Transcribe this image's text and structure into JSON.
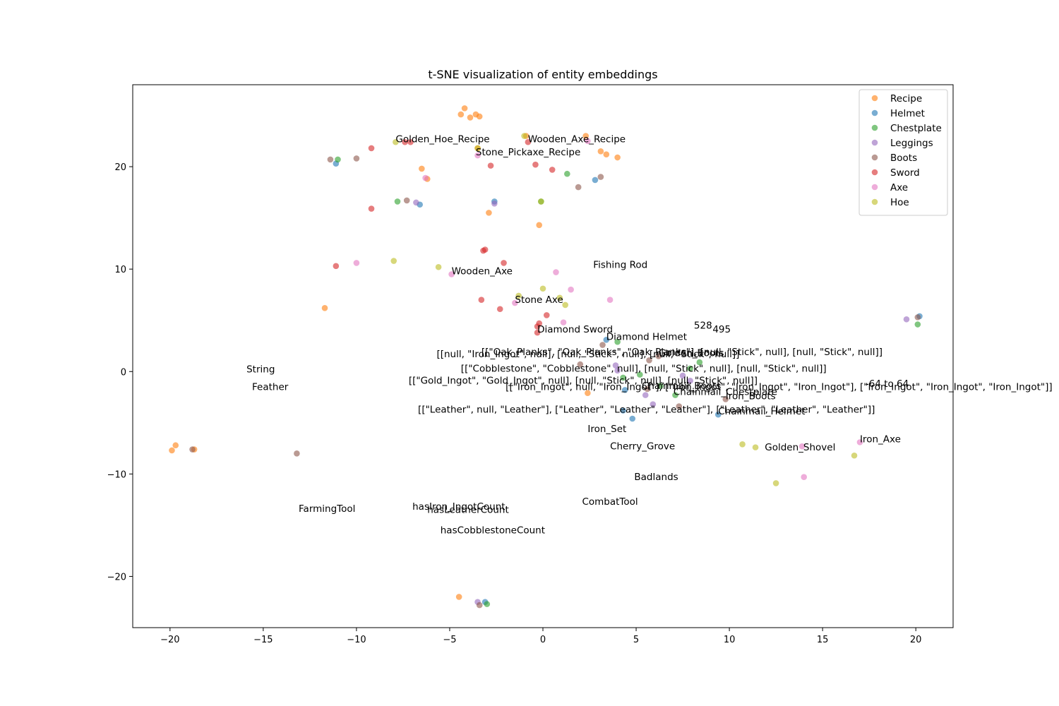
{
  "chart_data": {
    "type": "scatter",
    "title": "t-SNE visualization of entity embeddings",
    "xlabel": "",
    "ylabel": "",
    "xlim": [
      -22,
      22
    ],
    "ylim": [
      -25,
      28
    ],
    "xticks": [
      -20,
      -15,
      -10,
      -5,
      0,
      5,
      10,
      15,
      20
    ],
    "yticks": [
      -20,
      -10,
      0,
      10,
      20
    ],
    "xtick_labels": [
      "−20",
      "−15",
      "−10",
      "−5",
      "0",
      "5",
      "10",
      "15",
      "20"
    ],
    "ytick_labels": [
      "−20",
      "−10",
      "0",
      "10",
      "20"
    ],
    "legend_position": "top-right",
    "series": [
      {
        "name": "Recipe",
        "color": "#ff7f0e",
        "points": [
          [
            -4.2,
            25.7
          ],
          [
            -4.4,
            25.1
          ],
          [
            -3.9,
            24.8
          ],
          [
            -3.6,
            25.1
          ],
          [
            -3.4,
            24.9
          ],
          [
            2.3,
            23.0
          ],
          [
            -0.9,
            23.0
          ],
          [
            -3.5,
            21.8
          ],
          [
            3.1,
            21.5
          ],
          [
            3.4,
            21.2
          ],
          [
            4.0,
            20.9
          ],
          [
            -6.5,
            19.8
          ],
          [
            -6.2,
            18.8
          ],
          [
            -2.9,
            15.5
          ],
          [
            -0.2,
            14.3
          ],
          [
            -11.7,
            6.2
          ],
          [
            2.4,
            -2.1
          ],
          [
            -19.9,
            -7.7
          ],
          [
            -19.7,
            -7.2
          ],
          [
            -18.7,
            -7.6
          ],
          [
            -4.5,
            -22.0
          ]
        ]
      },
      {
        "name": "Helmet",
        "color": "#1f77b4",
        "points": [
          [
            -11.1,
            20.3
          ],
          [
            2.8,
            18.7
          ],
          [
            -6.6,
            16.3
          ],
          [
            -2.6,
            16.6
          ],
          [
            3.4,
            3.1
          ],
          [
            4.4,
            -1.8
          ],
          [
            4.3,
            -3.8
          ],
          [
            4.8,
            -4.6
          ],
          [
            9.4,
            -4.2
          ],
          [
            20.2,
            5.4
          ],
          [
            -3.1,
            -22.5
          ]
        ]
      },
      {
        "name": "Chestplate",
        "color": "#2ca02c",
        "points": [
          [
            -11.0,
            20.7
          ],
          [
            1.3,
            19.3
          ],
          [
            -7.8,
            16.6
          ],
          [
            -0.1,
            16.6
          ],
          [
            4.0,
            2.9
          ],
          [
            8.4,
            0.9
          ],
          [
            7.9,
            0.3
          ],
          [
            5.2,
            -0.3
          ],
          [
            4.3,
            -0.6
          ],
          [
            6.3,
            -1.4
          ],
          [
            7.1,
            -2.3
          ],
          [
            20.1,
            4.6
          ],
          [
            -3.0,
            -22.7
          ]
        ]
      },
      {
        "name": "Leggings",
        "color": "#9467bd",
        "points": [
          [
            -2.6,
            16.4
          ],
          [
            -6.8,
            16.5
          ],
          [
            3.9,
            0.6
          ],
          [
            4.0,
            0.1
          ],
          [
            7.5,
            -0.4
          ],
          [
            7.9,
            -0.9
          ],
          [
            5.5,
            -2.3
          ],
          [
            5.9,
            -3.2
          ],
          [
            19.5,
            5.1
          ],
          [
            -3.5,
            -22.5
          ]
        ]
      },
      {
        "name": "Boots",
        "color": "#8c564b",
        "points": [
          [
            -11.4,
            20.7
          ],
          [
            -10.0,
            20.8
          ],
          [
            1.9,
            18.0
          ],
          [
            3.1,
            19.0
          ],
          [
            -7.3,
            16.7
          ],
          [
            3.2,
            2.6
          ],
          [
            5.7,
            1.1
          ],
          [
            6.2,
            1.5
          ],
          [
            2.0,
            0.7
          ],
          [
            5.6,
            -1.7
          ],
          [
            7.3,
            -3.4
          ],
          [
            9.8,
            -2.7
          ],
          [
            -13.2,
            -8.0
          ],
          [
            -18.8,
            -7.6
          ],
          [
            20.1,
            5.3
          ],
          [
            -3.4,
            -22.8
          ]
        ]
      },
      {
        "name": "Sword",
        "color": "#d62728",
        "points": [
          [
            -9.2,
            21.8
          ],
          [
            -7.4,
            22.4
          ],
          [
            -7.1,
            22.4
          ],
          [
            -0.8,
            22.4
          ],
          [
            -0.4,
            20.2
          ],
          [
            -2.8,
            20.1
          ],
          [
            0.5,
            19.7
          ],
          [
            -9.2,
            15.9
          ],
          [
            -3.2,
            11.8
          ],
          [
            -3.1,
            11.9
          ],
          [
            -2.1,
            10.6
          ],
          [
            -11.1,
            10.3
          ],
          [
            -3.3,
            7.0
          ],
          [
            -2.3,
            6.1
          ],
          [
            0.2,
            5.5
          ],
          [
            -0.2,
            4.7
          ],
          [
            -0.3,
            4.4
          ],
          [
            -0.3,
            3.8
          ]
        ]
      },
      {
        "name": "Axe",
        "color": "#e377c2",
        "points": [
          [
            2.4,
            22.5
          ],
          [
            -3.5,
            21.1
          ],
          [
            -6.3,
            18.9
          ],
          [
            -10.0,
            10.6
          ],
          [
            -4.9,
            9.5
          ],
          [
            0.7,
            9.7
          ],
          [
            1.5,
            8.0
          ],
          [
            -1.5,
            6.7
          ],
          [
            1.1,
            4.8
          ],
          [
            3.6,
            7.0
          ],
          [
            13.9,
            -7.3
          ],
          [
            17.0,
            -6.9
          ],
          [
            14.0,
            -10.3
          ]
        ]
      },
      {
        "name": "Hoe",
        "color": "#bcbd22",
        "points": [
          [
            -7.9,
            22.4
          ],
          [
            -1.0,
            23.0
          ],
          [
            -3.5,
            21.8
          ],
          [
            -0.1,
            16.6
          ],
          [
            -8.0,
            10.8
          ],
          [
            -5.6,
            10.2
          ],
          [
            0.0,
            8.1
          ],
          [
            -1.3,
            7.4
          ],
          [
            0.9,
            7.2
          ],
          [
            1.2,
            6.5
          ],
          [
            10.7,
            -7.1
          ],
          [
            11.4,
            -7.4
          ],
          [
            16.7,
            -8.2
          ],
          [
            12.5,
            -10.9
          ]
        ]
      }
    ],
    "annotations": [
      {
        "text": "Golden_Hoe_Recipe",
        "x": -7.9,
        "y": 22.4
      },
      {
        "text": "Wooden_Axe_Recipe",
        "x": -0.8,
        "y": 22.4
      },
      {
        "text": "Stone_Pickaxe_Recipe",
        "x": -3.6,
        "y": 21.1
      },
      {
        "text": "Fishing Rod",
        "x": 2.7,
        "y": 10.1
      },
      {
        "text": "Wooden_Axe",
        "x": -4.9,
        "y": 9.5
      },
      {
        "text": "Stone Axe",
        "x": -1.5,
        "y": 6.7
      },
      {
        "text": "528",
        "x": 8.1,
        "y": 4.2
      },
      {
        "text": "495",
        "x": 9.1,
        "y": 3.8
      },
      {
        "text": "Diamond Sword",
        "x": -0.3,
        "y": 3.8
      },
      {
        "text": "Diamond Helmet",
        "x": 3.4,
        "y": 3.1
      },
      {
        "text": "[[\"Oak_Planks\", \"Oak_Planks\", \"Oak_Planks\"], [null, \"Stick\", null], [null, \"Stick\", null]]",
        "x": -3.3,
        "y": 1.6
      },
      {
        "text": "[[null, \"Iron_Ingot\", null], [null, \"Stick\", null], [null, \"Stick\", null]]",
        "x": -5.7,
        "y": 1.4
      },
      {
        "text": "Golden_Boots",
        "x": 6.2,
        "y": 1.5
      },
      {
        "text": "[[\"Cobblestone\", \"Cobblestone\", null], [null, \"Stick\", null], [null, \"Stick\", null]]",
        "x": -4.4,
        "y": 0.0
      },
      {
        "text": "[[\"Gold_Ingot\", \"Gold_Ingot\", null], [null, \"Stick\", null], [null, \"Stick\", null]]",
        "x": -7.2,
        "y": -1.2
      },
      {
        "text": "[[\"Iron_Ingot\", null, \"Iron_Ingot\"], [\"Iron_Ingot\", \"Iron_Ingot\", \"Iron_Ingot\"], [\"Iron_Ingot\", \"Iron_Ingot\", \"Iron_Ingot\"]]",
        "x": -2.0,
        "y": -1.8
      },
      {
        "text": "Chainmail_Boots",
        "x": 5.3,
        "y": -1.7
      },
      {
        "text": "Chainmail_Chestplate",
        "x": 7.0,
        "y": -2.3
      },
      {
        "text": "-64 to 64",
        "x": 17.3,
        "y": -1.5
      },
      {
        "text": "Iron_Boots",
        "x": 9.8,
        "y": -2.7
      },
      {
        "text": "[[\"Leather\", null, \"Leather\"], [\"Leather\", \"Leather\", \"Leather\"], [\"Leather\", \"Leather\", \"Leather\"]]",
        "x": -6.7,
        "y": -4.0
      },
      {
        "text": "Chainmail_Helmet",
        "x": 9.4,
        "y": -4.2
      },
      {
        "text": "Iron_Set",
        "x": 2.4,
        "y": -5.9
      },
      {
        "text": "Cherry_Grove",
        "x": 3.6,
        "y": -7.6
      },
      {
        "text": "Golden_Shovel",
        "x": 11.9,
        "y": -7.7
      },
      {
        "text": "Iron_Axe",
        "x": 17.0,
        "y": -6.9
      },
      {
        "text": "Badlands",
        "x": 4.9,
        "y": -10.6
      },
      {
        "text": "CombatTool",
        "x": 2.1,
        "y": -13.0
      },
      {
        "text": "hasIron_IngotCount",
        "x": -7.0,
        "y": -13.5
      },
      {
        "text": "hasLeatherCount",
        "x": -6.2,
        "y": -13.8
      },
      {
        "text": "hasCobblestoneCount",
        "x": -5.5,
        "y": -15.8
      },
      {
        "text": "FarmingTool",
        "x": -13.1,
        "y": -13.7
      },
      {
        "text": "String",
        "x": -15.9,
        "y": -0.1
      },
      {
        "text": "Feather",
        "x": -15.6,
        "y": -1.8
      }
    ]
  }
}
